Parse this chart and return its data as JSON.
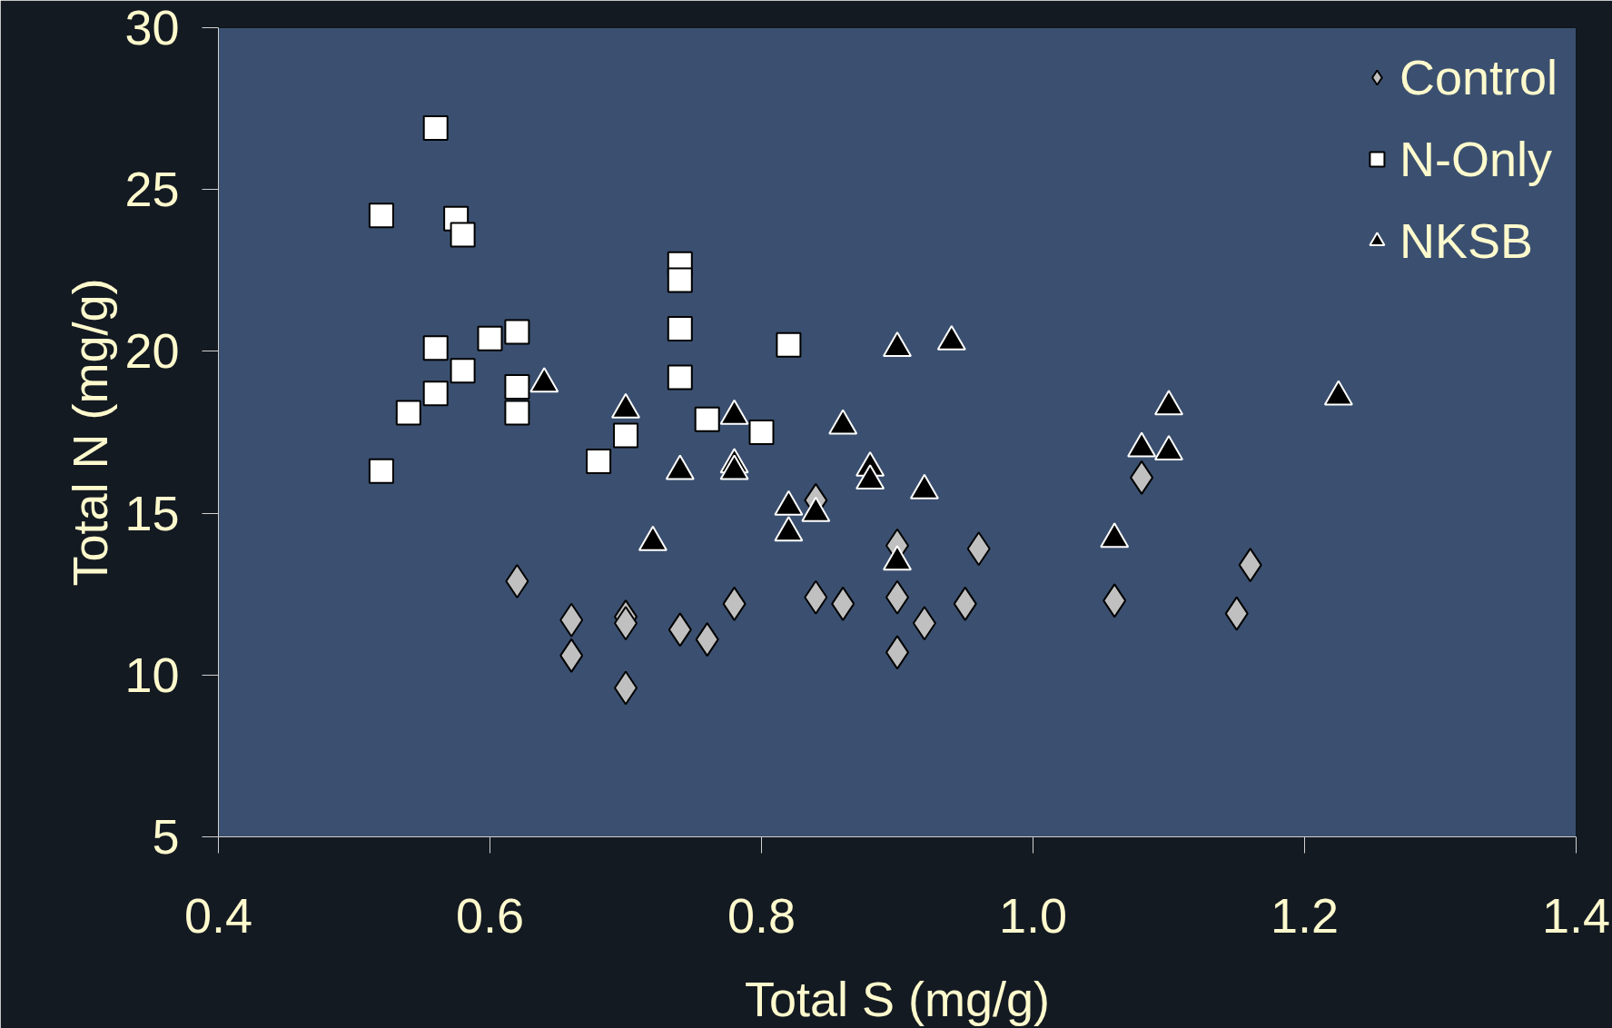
{
  "chart_data": {
    "type": "scatter",
    "xlabel": "Total S (mg/g)",
    "ylabel": "Total N (mg/g)",
    "xlim": [
      0.4,
      1.4
    ],
    "ylim": [
      5,
      30
    ],
    "xticks": [
      0.4,
      0.6,
      0.8,
      {
        "value": 1.0,
        "label": "1.0"
      },
      1.2,
      1.4
    ],
    "yticks": [
      5,
      10,
      15,
      20,
      25,
      30
    ],
    "grid": false,
    "legend": "top right",
    "series": [
      {
        "name": "Control",
        "color": "#c0c0c0",
        "marker": "diamond",
        "x": [
          0.62,
          0.66,
          0.66,
          0.7,
          0.7,
          0.7,
          0.74,
          0.76,
          0.78,
          0.84,
          0.84,
          0.86,
          0.9,
          0.9,
          0.9,
          0.92,
          0.95,
          0.96,
          1.06,
          1.08,
          1.15,
          1.16
        ],
        "values": [
          12.9,
          11.7,
          10.6,
          11.8,
          11.6,
          9.6,
          11.4,
          11.1,
          12.2,
          12.4,
          15.4,
          12.2,
          12.4,
          14.0,
          10.7,
          11.6,
          12.2,
          13.9,
          12.3,
          16.1,
          11.9,
          13.4
        ]
      },
      {
        "name": "N-Only",
        "color": "#ffffff",
        "marker": "square",
        "x": [
          0.52,
          0.52,
          0.54,
          0.56,
          0.56,
          0.56,
          0.575,
          0.58,
          0.58,
          0.6,
          0.62,
          0.62,
          0.62,
          0.68,
          0.7,
          0.74,
          0.74,
          0.74,
          0.74,
          0.76,
          0.8,
          0.82
        ],
        "values": [
          24.2,
          16.3,
          18.1,
          26.9,
          20.1,
          18.7,
          24.1,
          23.6,
          19.4,
          20.4,
          20.6,
          18.9,
          18.1,
          16.6,
          17.4,
          22.7,
          22.2,
          20.7,
          19.2,
          17.9,
          17.5,
          20.2
        ]
      },
      {
        "name": "NKSB",
        "color": "#000000",
        "marker": "triangle",
        "x": [
          0.64,
          0.7,
          0.72,
          0.74,
          0.78,
          0.78,
          0.78,
          0.82,
          0.82,
          0.84,
          0.86,
          0.88,
          0.88,
          0.9,
          0.9,
          0.92,
          0.94,
          1.06,
          1.08,
          1.1,
          1.1,
          1.225
        ],
        "values": [
          19.0,
          18.2,
          14.1,
          16.3,
          18.0,
          16.5,
          16.3,
          15.2,
          14.4,
          15.0,
          17.7,
          16.4,
          16.0,
          20.1,
          13.5,
          15.7,
          20.3,
          14.2,
          17.0,
          18.3,
          16.9,
          18.6
        ]
      }
    ]
  }
}
